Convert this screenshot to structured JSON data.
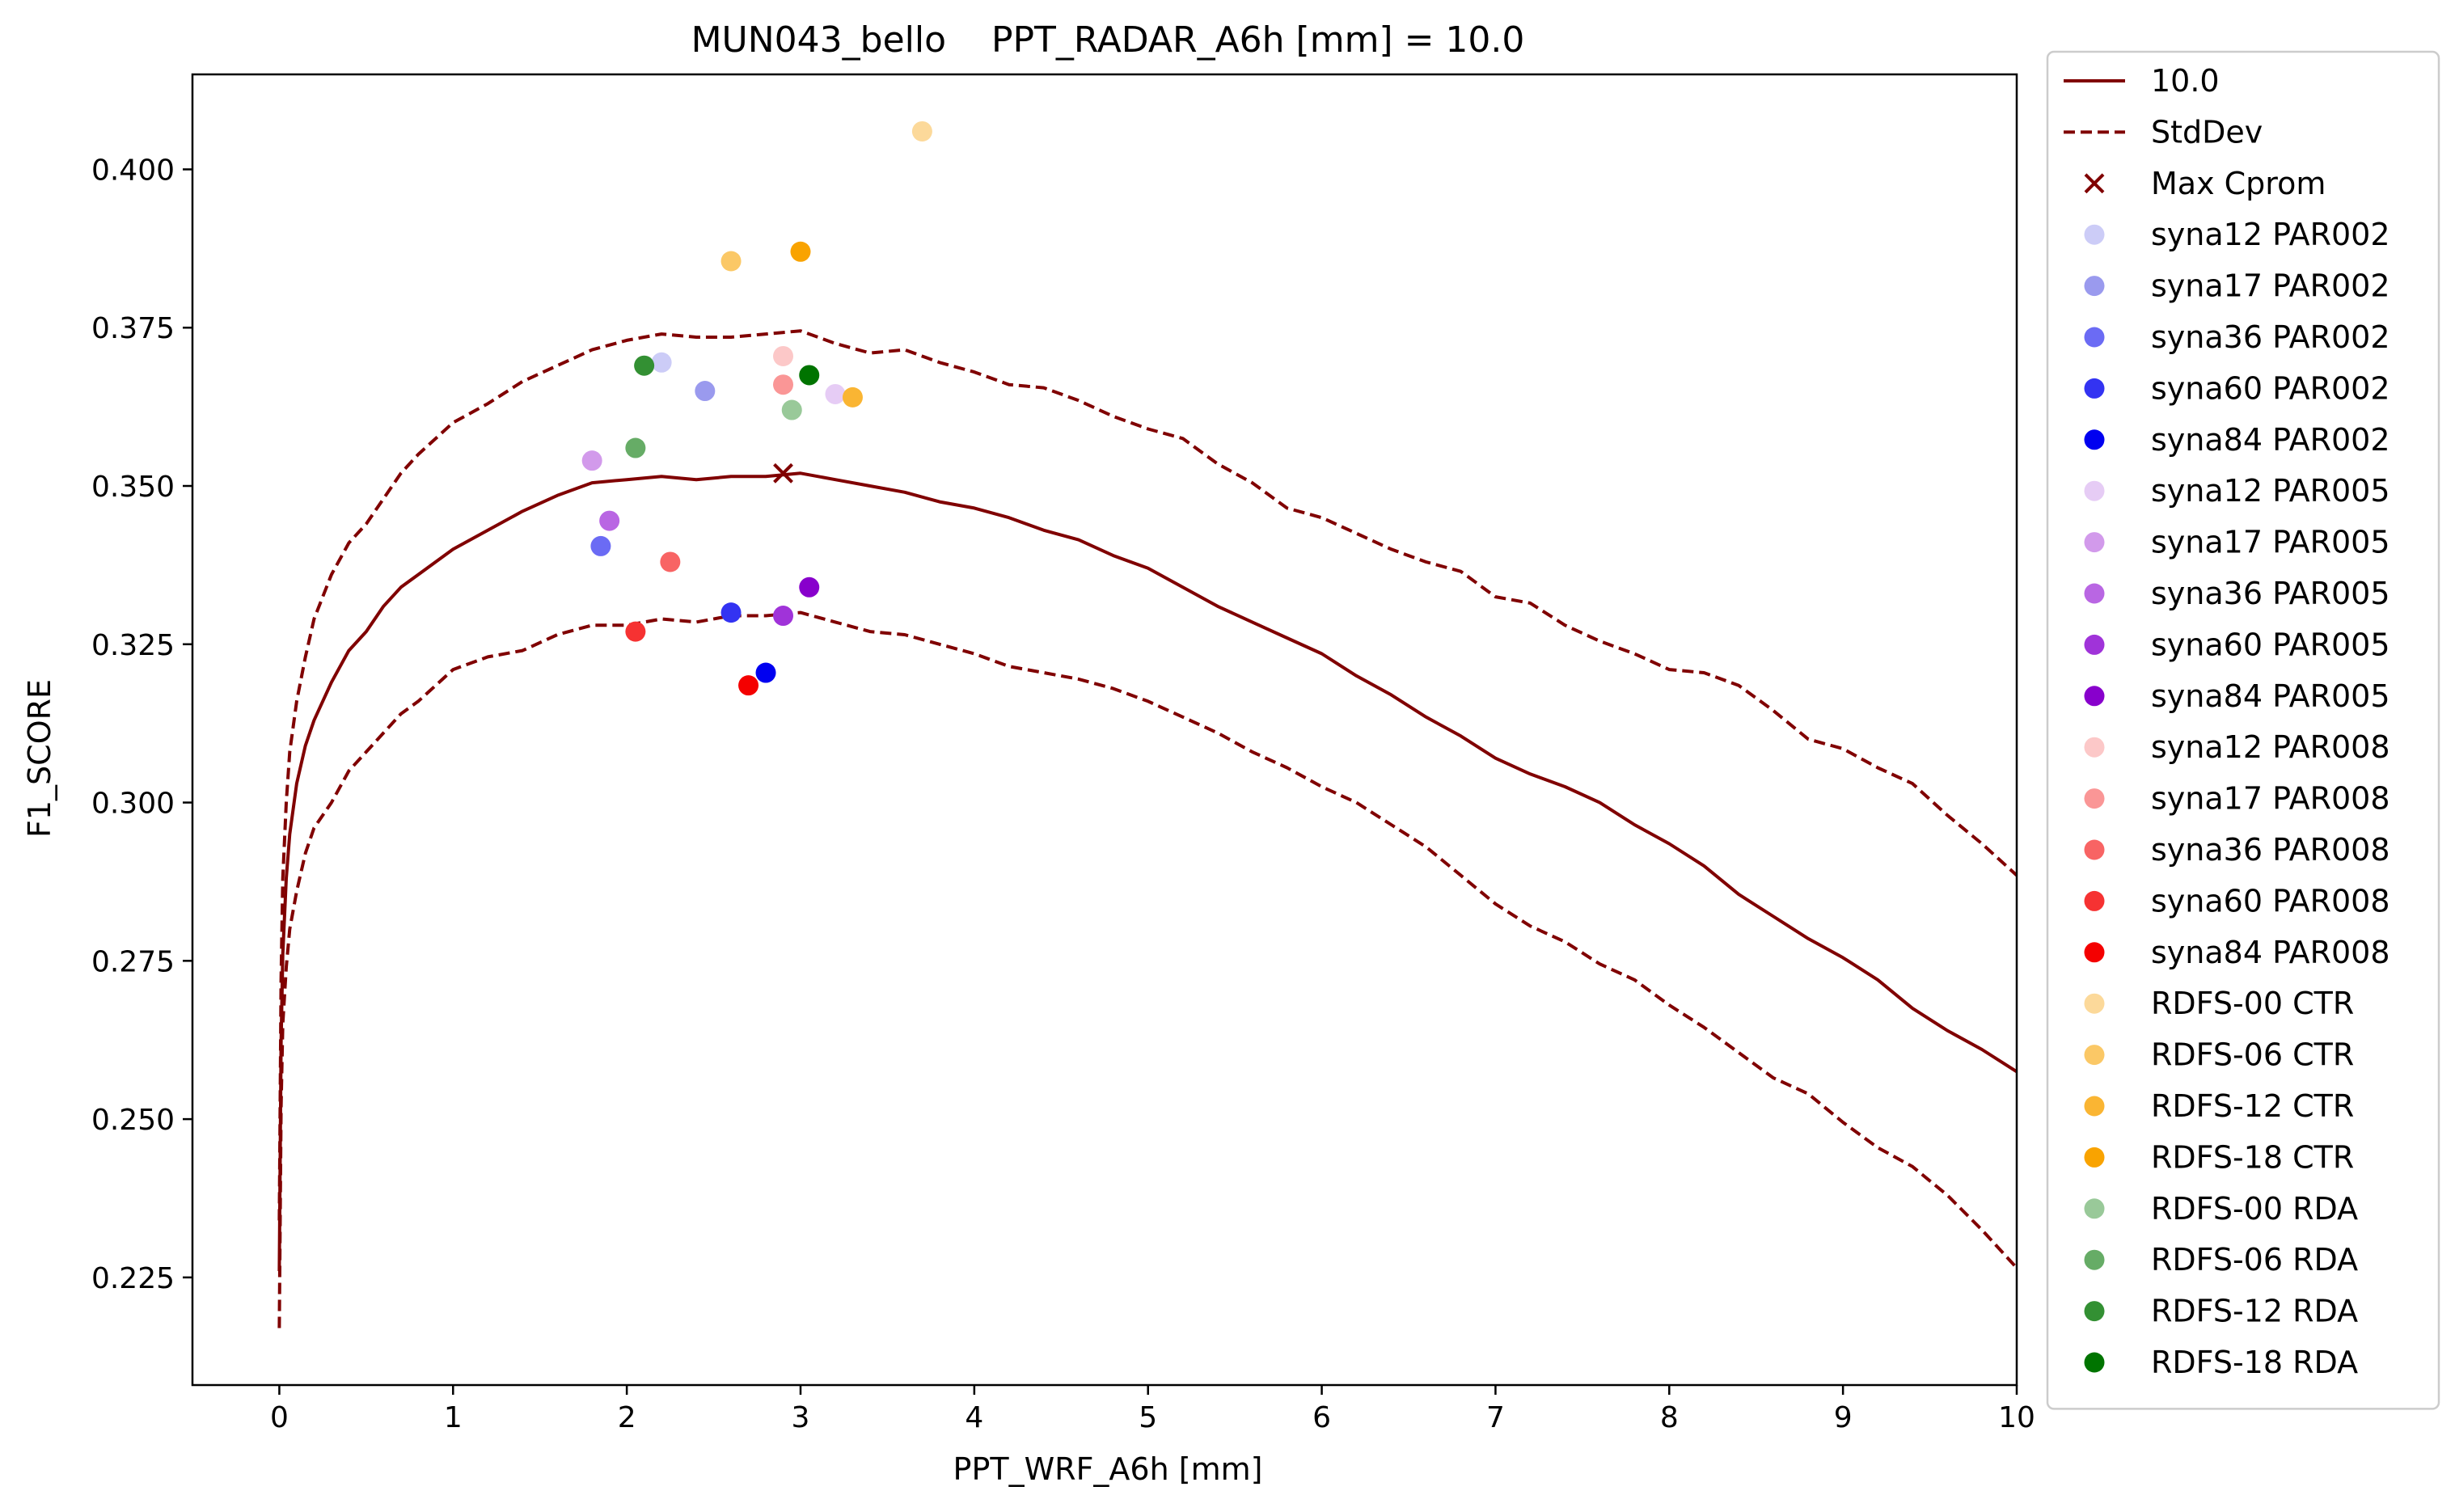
{
  "chart_data": {
    "type": "scatter",
    "title": "MUN043_bello    PPT_RADAR_A6h [mm] = 10.0",
    "xlabel": "PPT_WRF_A6h [mm]",
    "ylabel": "F1_SCORE",
    "xlim": [
      -0.5,
      10
    ],
    "ylim": [
      0.208,
      0.415
    ],
    "xticks": [
      0,
      1,
      2,
      3,
      4,
      5,
      6,
      7,
      8,
      9,
      10
    ],
    "xtick_labels": [
      "0",
      "1",
      "2",
      "3",
      "4",
      "5",
      "6",
      "7",
      "8",
      "9",
      "10"
    ],
    "yticks": [
      0.225,
      0.25,
      0.275,
      0.3,
      0.325,
      0.35,
      0.375,
      0.4
    ],
    "ytick_labels": [
      "0.225",
      "0.250",
      "0.275",
      "0.300",
      "0.325",
      "0.350",
      "0.375",
      "0.400"
    ],
    "grid": false,
    "legend_position": "outside-right",
    "colors": {
      "curve": "#800000"
    },
    "lines": [
      {
        "name": "10.0",
        "style": "solid",
        "color": "#800000",
        "x": [
          0.0,
          0.01,
          0.02,
          0.04,
          0.06,
          0.1,
          0.15,
          0.2,
          0.3,
          0.4,
          0.5,
          0.6,
          0.7,
          0.8,
          1.0,
          1.2,
          1.4,
          1.6,
          1.8,
          2.0,
          2.2,
          2.4,
          2.6,
          2.8,
          3.0,
          3.2,
          3.4,
          3.6,
          3.8,
          4.0,
          4.2,
          4.4,
          4.6,
          4.8,
          5.0,
          5.2,
          5.4,
          5.6,
          5.8,
          6.0,
          6.2,
          6.4,
          6.6,
          6.8,
          7.0,
          7.2,
          7.4,
          7.6,
          7.8,
          8.0,
          8.2,
          8.4,
          8.6,
          8.8,
          9.0,
          9.2,
          9.4,
          9.6,
          9.8,
          10.0
        ],
        "y": [
          0.226,
          0.262,
          0.276,
          0.288,
          0.295,
          0.303,
          0.309,
          0.313,
          0.319,
          0.324,
          0.327,
          0.331,
          0.334,
          0.336,
          0.34,
          0.343,
          0.346,
          0.3485,
          0.3505,
          0.351,
          0.3515,
          0.351,
          0.3515,
          0.3515,
          0.352,
          0.351,
          0.35,
          0.349,
          0.3475,
          0.3465,
          0.345,
          0.343,
          0.3415,
          0.339,
          0.337,
          0.334,
          0.331,
          0.3285,
          0.326,
          0.3235,
          0.32,
          0.317,
          0.3135,
          0.3105,
          0.307,
          0.3045,
          0.3025,
          0.3,
          0.2965,
          0.2935,
          0.29,
          0.2855,
          0.282,
          0.2785,
          0.2755,
          0.272,
          0.2675,
          0.264,
          0.261,
          0.2575
        ]
      },
      {
        "name": "StdDev",
        "style": "dashed",
        "color": "#800000",
        "x": [
          0.0,
          0.01,
          0.02,
          0.04,
          0.06,
          0.1,
          0.15,
          0.2,
          0.3,
          0.4,
          0.5,
          0.6,
          0.7,
          0.8,
          1.0,
          1.2,
          1.4,
          1.6,
          1.8,
          2.0,
          2.2,
          2.4,
          2.6,
          2.8,
          3.0,
          3.2,
          3.4,
          3.6,
          3.8,
          4.0,
          4.2,
          4.4,
          4.6,
          4.8,
          5.0,
          5.2,
          5.4,
          5.6,
          5.8,
          6.0,
          6.2,
          6.4,
          6.6,
          6.8,
          7.0,
          7.2,
          7.4,
          7.6,
          7.8,
          8.0,
          8.2,
          8.4,
          8.6,
          8.8,
          9.0,
          9.2,
          9.4,
          9.6,
          9.8,
          10.0
        ],
        "y": [
          0.234,
          0.272,
          0.288,
          0.3,
          0.308,
          0.316,
          0.323,
          0.329,
          0.336,
          0.341,
          0.344,
          0.348,
          0.352,
          0.355,
          0.36,
          0.363,
          0.3665,
          0.369,
          0.3715,
          0.373,
          0.374,
          0.3735,
          0.3735,
          0.374,
          0.3745,
          0.3725,
          0.371,
          0.3715,
          0.3695,
          0.368,
          0.366,
          0.3655,
          0.3635,
          0.361,
          0.359,
          0.3575,
          0.3535,
          0.3505,
          0.3465,
          0.345,
          0.3425,
          0.34,
          0.338,
          0.3365,
          0.3325,
          0.3315,
          0.328,
          0.3255,
          0.3235,
          0.321,
          0.3205,
          0.3185,
          0.3145,
          0.31,
          0.3085,
          0.3055,
          0.303,
          0.298,
          0.2935,
          0.2885
        ]
      },
      {
        "name": "",
        "style": "dashed",
        "color": "#800000",
        "x": [
          0.0,
          0.01,
          0.02,
          0.04,
          0.06,
          0.1,
          0.15,
          0.2,
          0.3,
          0.4,
          0.5,
          0.6,
          0.7,
          0.8,
          1.0,
          1.2,
          1.4,
          1.6,
          1.8,
          2.0,
          2.2,
          2.4,
          2.6,
          2.8,
          3.0,
          3.2,
          3.4,
          3.6,
          3.8,
          4.0,
          4.2,
          4.4,
          4.6,
          4.8,
          5.0,
          5.2,
          5.4,
          5.6,
          5.8,
          6.0,
          6.2,
          6.4,
          6.6,
          6.8,
          7.0,
          7.2,
          7.4,
          7.6,
          7.8,
          8.0,
          8.2,
          8.4,
          8.6,
          8.8,
          9.0,
          9.2,
          9.4,
          9.6,
          9.8,
          10.0
        ],
        "y": [
          0.217,
          0.252,
          0.265,
          0.274,
          0.28,
          0.286,
          0.292,
          0.296,
          0.3,
          0.305,
          0.308,
          0.311,
          0.314,
          0.316,
          0.321,
          0.323,
          0.324,
          0.3265,
          0.328,
          0.328,
          0.329,
          0.3285,
          0.3295,
          0.3295,
          0.33,
          0.3285,
          0.327,
          0.3265,
          0.325,
          0.3235,
          0.3215,
          0.3205,
          0.3195,
          0.318,
          0.316,
          0.3135,
          0.311,
          0.308,
          0.3055,
          0.3025,
          0.3,
          0.2965,
          0.293,
          0.2885,
          0.284,
          0.2805,
          0.278,
          0.2745,
          0.272,
          0.268,
          0.2645,
          0.2605,
          0.2565,
          0.254,
          0.2495,
          0.2455,
          0.2425,
          0.238,
          0.2325,
          0.2265
        ]
      }
    ],
    "max_marker": {
      "name": "Max Cprom",
      "x": 2.9,
      "y": 0.352,
      "color": "#800000"
    },
    "series": [
      {
        "name": "syna12 PAR002",
        "color": "#ccccf7",
        "x": 2.2,
        "y": 0.3695
      },
      {
        "name": "syna17 PAR002",
        "color": "#9a9aee",
        "x": 2.45,
        "y": 0.365
      },
      {
        "name": "syna36 PAR002",
        "color": "#6b6bf4",
        "x": 1.85,
        "y": 0.3405
      },
      {
        "name": "syna60 PAR002",
        "color": "#3333f2",
        "x": 2.6,
        "y": 0.33
      },
      {
        "name": "syna84 PAR002",
        "color": "#0000f0",
        "x": 2.8,
        "y": 0.3205
      },
      {
        "name": "syna12 PAR005",
        "color": "#e6ccf5",
        "x": 3.2,
        "y": 0.3645
      },
      {
        "name": "syna17 PAR005",
        "color": "#d29aeb",
        "x": 1.8,
        "y": 0.354
      },
      {
        "name": "syna36 PAR005",
        "color": "#b966e3",
        "x": 1.9,
        "y": 0.3445
      },
      {
        "name": "syna60 PAR005",
        "color": "#a033d9",
        "x": 2.9,
        "y": 0.3295
      },
      {
        "name": "syna84 PAR005",
        "color": "#8800cc",
        "x": 3.05,
        "y": 0.334
      },
      {
        "name": "syna12 PAR008",
        "color": "#fcc8c8",
        "x": 2.9,
        "y": 0.3705
      },
      {
        "name": "syna17 PAR008",
        "color": "#fa9696",
        "x": 2.9,
        "y": 0.366
      },
      {
        "name": "syna36 PAR008",
        "color": "#f86464",
        "x": 2.25,
        "y": 0.338
      },
      {
        "name": "syna60 PAR008",
        "color": "#f63232",
        "x": 2.05,
        "y": 0.327
      },
      {
        "name": "syna84 PAR008",
        "color": "#f40000",
        "x": 2.7,
        "y": 0.3185
      },
      {
        "name": "RDFS-00 CTR",
        "color": "#fcd99a",
        "x": 3.7,
        "y": 0.406
      },
      {
        "name": "RDFS-06 CTR",
        "color": "#fbc866",
        "x": 2.6,
        "y": 0.3855
      },
      {
        "name": "RDFS-12 CTR",
        "color": "#fab533",
        "x": 3.3,
        "y": 0.364
      },
      {
        "name": "RDFS-18 CTR",
        "color": "#f9a300",
        "x": 3.0,
        "y": 0.387
      },
      {
        "name": "RDFS-00 RDA",
        "color": "#99c999",
        "x": 2.95,
        "y": 0.362
      },
      {
        "name": "RDFS-06 RDA",
        "color": "#66ac66",
        "x": 2.05,
        "y": 0.356
      },
      {
        "name": "RDFS-12 RDA",
        "color": "#339033",
        "x": 2.1,
        "y": 0.369
      },
      {
        "name": "RDFS-18 RDA",
        "color": "#007400",
        "x": 3.05,
        "y": 0.3675
      }
    ]
  }
}
